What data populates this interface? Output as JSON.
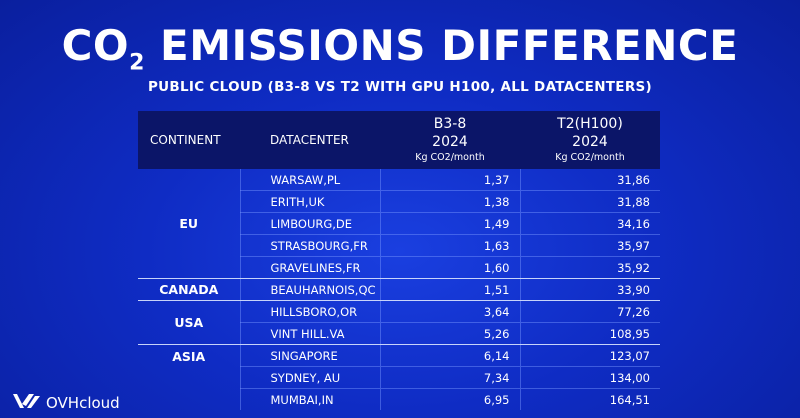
{
  "title": {
    "main_a": "CO",
    "sub": "2",
    "main_b": " EMISSIONS DIFFERENCE"
  },
  "subtitle": "PUBLIC CLOUD (B3-8 VS T2 WITH GPU H100, ALL DATACENTERS)",
  "table": {
    "headers": {
      "continent": "CONTINENT",
      "datacenter": "DATACENTER",
      "col_a": {
        "name": "B3-8",
        "year": "2024",
        "unit": "Kg CO2/month"
      },
      "col_b": {
        "name": "T2(H100)",
        "year": "2024",
        "unit": "Kg CO2/month"
      }
    },
    "groups": [
      {
        "continent": "EU",
        "rows": [
          {
            "datacenter": "WARSAW,PL",
            "a": "1,37",
            "b": "31,86"
          },
          {
            "datacenter": "ERITH,UK",
            "a": "1,38",
            "b": "31,88"
          },
          {
            "datacenter": "LIMBOURG,DE",
            "a": "1,49",
            "b": "34,16"
          },
          {
            "datacenter": "STRASBOURG,FR",
            "a": "1,63",
            "b": "35,97"
          },
          {
            "datacenter": "GRAVELINES,FR",
            "a": "1,60",
            "b": "35,92"
          }
        ]
      },
      {
        "continent": "CANADA",
        "rows": [
          {
            "datacenter": "BEAUHARNOIS,QC",
            "a": "1,51",
            "b": "33,90"
          }
        ]
      },
      {
        "continent": "USA",
        "rows": [
          {
            "datacenter": "HILLSBORO,OR",
            "a": "3,64",
            "b": "77,26"
          },
          {
            "datacenter": "VINT HILL.VA",
            "a": "5,26",
            "b": "108,95"
          }
        ]
      },
      {
        "continent": "ASIA",
        "rows": [
          {
            "datacenter": "SINGAPORE",
            "a": "6,14",
            "b": "123,07"
          },
          {
            "datacenter": "SYDNEY, AU",
            "a": "7,34",
            "b": "134,00"
          },
          {
            "datacenter": "MUMBAI,IN",
            "a": "6,95",
            "b": "164,51"
          }
        ]
      }
    ]
  },
  "logo": {
    "text": "OVHcloud",
    "icon": "ovhcloud-logo-icon"
  },
  "colors": {
    "background": "#0f2cc4",
    "header": "#0b1568",
    "text": "#ffffff"
  }
}
